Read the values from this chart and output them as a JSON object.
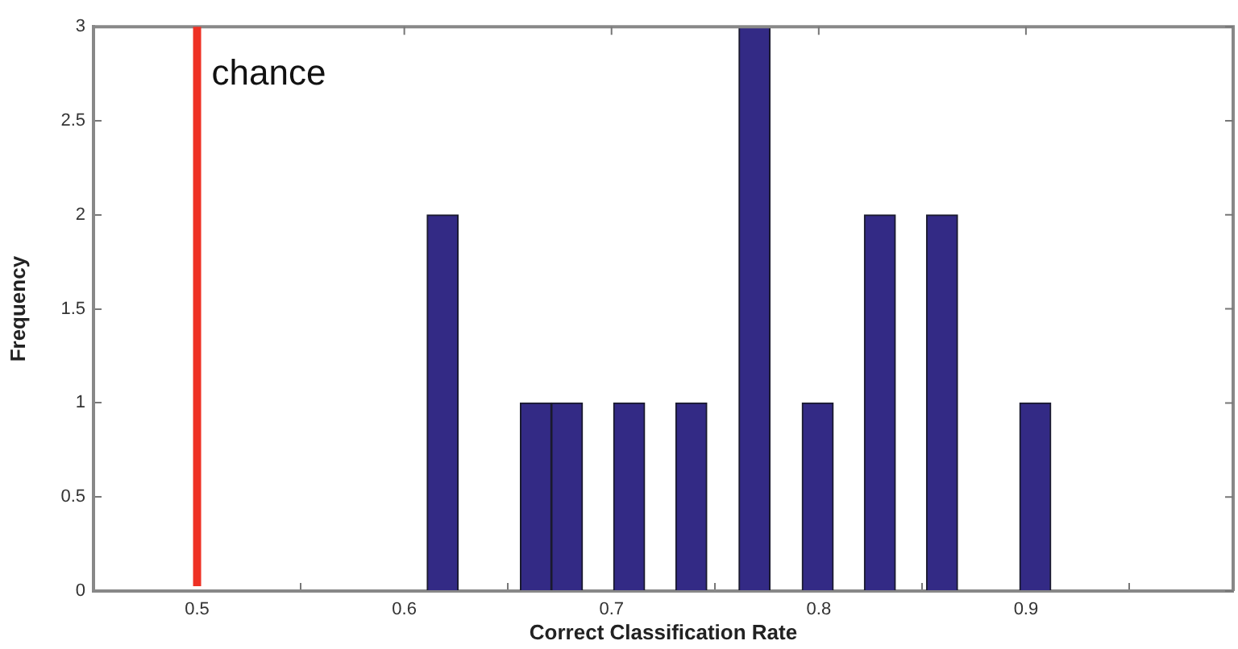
{
  "chart_data": {
    "type": "histogram",
    "xlabel": "Correct Classification Rate",
    "ylabel": "Frequency",
    "bins": [
      0.611,
      0.626,
      0.641,
      0.656,
      0.671,
      0.686,
      0.701,
      0.716,
      0.731,
      0.746,
      0.761,
      0.777,
      0.792,
      0.807,
      0.822,
      0.837,
      0.852,
      0.867,
      0.882,
      0.897,
      0.912
    ],
    "values": [
      2,
      0,
      0,
      1,
      1,
      0,
      1,
      0,
      1,
      0,
      3,
      0,
      1,
      0,
      2,
      0,
      2,
      0,
      0,
      1
    ],
    "color": "#332a85",
    "xlim": [
      0.45,
      1.0
    ],
    "xticks": [
      0.5,
      0.6,
      0.7,
      0.8,
      0.9
    ],
    "ylim": [
      0,
      3
    ],
    "yticks": [
      0,
      0.5,
      1,
      1.5,
      2,
      2.5,
      3
    ],
    "grid": false,
    "legend": false,
    "ref_lines": [
      {
        "axis": "x",
        "value": 0.5,
        "label": "chance",
        "color": "#ee3124"
      }
    ]
  }
}
